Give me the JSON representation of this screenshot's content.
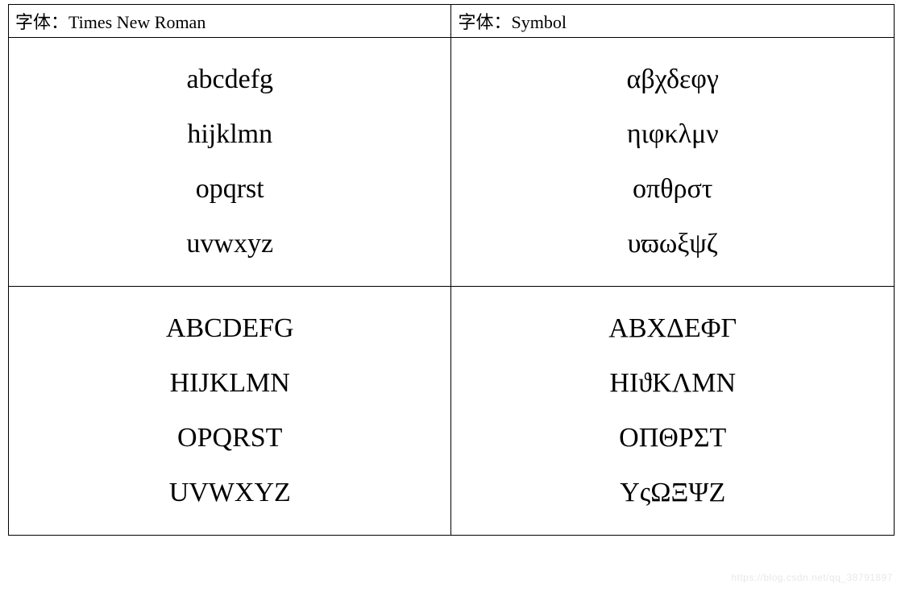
{
  "table": {
    "border_color": "#000000",
    "background_color": "#ffffff",
    "text_color": "#000000",
    "header_font_size": 22,
    "content_font_size": 34,
    "content_line_height": 2.0,
    "columns": [
      {
        "header_prefix": "字体：",
        "header_font_name": "Times New Roman",
        "lowercase_rows": [
          "abcdefg",
          "hijklmn",
          "opqrst",
          "uvwxyz"
        ],
        "uppercase_rows": [
          "ABCDEFG",
          "HIJKLMN",
          "OPQRST",
          "UVWXYZ"
        ]
      },
      {
        "header_prefix": "字体：",
        "header_font_name": "Symbol",
        "lowercase_rows": [
          "αβχδεφγ",
          "ηιφκλμν",
          "οπθρστ",
          "υϖωξψζ"
        ],
        "uppercase_rows": [
          "ΑΒΧΔΕΦΓ",
          "ΗΙϑΚΛΜΝ",
          "ΟΠΘΡΣΤ",
          "ΥςΩΞΨΖ"
        ]
      }
    ]
  },
  "watermark": "https://blog.csdn.net/qq_38791897"
}
